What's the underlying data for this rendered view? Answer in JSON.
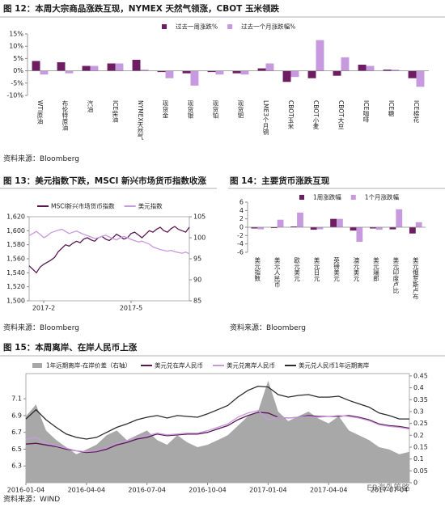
{
  "chart_data": [
    {
      "type": "bar",
      "title": "图 12：本周大宗商品涨跌互现，NYMEX 天然气领涨，CBOT 玉米领跌",
      "source": "资料来源：Bloomberg",
      "categories": [
        "WTI原油",
        "布伦特原油",
        "汽油",
        "ICE柴油",
        "NYMEX天然气",
        "现货金",
        "现货银",
        "现货铂",
        "现货钯",
        "LME3个月铜",
        "CBOT玉米",
        "CBOT小麦",
        "CBOT大豆",
        "ICE咖啡",
        "ICE糖",
        "ICE棉花"
      ],
      "series": [
        {
          "name": "过去一周涨跌%",
          "color": "#6e1d63",
          "values": [
            4,
            3.5,
            2,
            3,
            4.5,
            -0.5,
            -1,
            -0.5,
            -1,
            1,
            -4.5,
            -3,
            -2,
            2.5,
            0.5,
            -3
          ]
        },
        {
          "name": "过去一个月涨跌幅%",
          "color": "#c79ae0",
          "values": [
            -1.5,
            -1,
            2,
            3,
            0.5,
            -3,
            -6,
            -1.5,
            -1.5,
            3,
            -2.5,
            12.5,
            5.5,
            2,
            0.5,
            -6.5
          ]
        }
      ],
      "ylim": [
        -10,
        15
      ],
      "yticks": [
        {
          "value": -10,
          "label": "-10%"
        },
        {
          "value": -5,
          "label": "-5%"
        },
        {
          "value": 0,
          "label": "0%"
        },
        {
          "value": 5,
          "label": "5%"
        },
        {
          "value": 10,
          "label": "10%"
        },
        {
          "value": 15,
          "label": "15%"
        }
      ]
    },
    {
      "type": "line",
      "title": "图 13：美元指数下跌，MSCI 新兴市场货币指数收涨",
      "source": "资料来源：Bloomberg",
      "categories": [
        null,
        null,
        null,
        null,
        "2017-2",
        null,
        null,
        null,
        null,
        null,
        null,
        null,
        null,
        null,
        null,
        null,
        null,
        null,
        null,
        null,
        null,
        null,
        null,
        null,
        null,
        null,
        null,
        null,
        "2017-5",
        null,
        null,
        null,
        null,
        null,
        null,
        null,
        null,
        null,
        null,
        null,
        null,
        null,
        null,
        null,
        null
      ],
      "series": [
        {
          "name": "MSCI新兴市场货币指数",
          "color": "#5a1750",
          "values": [
            1550,
            1545,
            1540,
            1548,
            1552,
            1555,
            1558,
            1562,
            1570,
            1575,
            1580,
            1578,
            1582,
            1585,
            1583,
            1588,
            1590,
            1587,
            1585,
            1590,
            1592,
            1588,
            1586,
            1590,
            1595,
            1592,
            1588,
            1590,
            1596,
            1598,
            1594,
            1590,
            1595,
            1600,
            1598,
            1602,
            1605,
            1600,
            1598,
            1603,
            1606,
            1602,
            1600,
            1598,
            1605
          ]
        },
        {
          "name": "美元指数",
          "color": "#c79ae0",
          "axis": "y2",
          "values": [
            100.5,
            101,
            101.5,
            100.8,
            100,
            100.5,
            101.2,
            101.5,
            101.8,
            102,
            101.5,
            101,
            101.3,
            101.6,
            101.2,
            100.8,
            100.5,
            100.2,
            99.8,
            100,
            100.3,
            100.6,
            100.2,
            99.8,
            99.5,
            100,
            100.3,
            100,
            99.6,
            99.3,
            99,
            99.2,
            98.8,
            98.5,
            97.8,
            97.5,
            97.2,
            97,
            96.8,
            97,
            96.7,
            96.5,
            96.3,
            96.6,
            96.2
          ]
        }
      ],
      "ylim": [
        1500,
        1620
      ],
      "yticks": [
        {
          "value": 1500,
          "label": "1,500"
        },
        {
          "value": 1520,
          "label": "1,520"
        },
        {
          "value": 1540,
          "label": "1,540"
        },
        {
          "value": 1560,
          "label": "1,560"
        },
        {
          "value": 1580,
          "label": "1,580"
        },
        {
          "value": 1600,
          "label": "1,600"
        },
        {
          "value": 1620,
          "label": "1,620"
        }
      ],
      "y2lim": [
        85,
        105
      ],
      "y2ticks": [
        85,
        90,
        95,
        100,
        105
      ]
    },
    {
      "type": "bar",
      "title": "图 14：主要货币涨跌互现",
      "source": "资料来源：Bloomberg",
      "categories": [
        "美元指数",
        "美元人民币",
        "欧元美元",
        "美元日元",
        "英镑美元",
        "澳元美元",
        "美元瑞郎",
        "美元印度卢比",
        "美元俄罗斯卢布"
      ],
      "series": [
        {
          "name": "1周涨跌幅",
          "color": "#6e1d63",
          "values": [
            -0.3,
            -0.2,
            0.2,
            -0.6,
            2,
            -0.8,
            -0.3,
            -0.5,
            -1.5
          ]
        },
        {
          "name": "1个月涨跌幅",
          "color": "#c79ae0",
          "values": [
            -0.5,
            1.8,
            3.5,
            -0.5,
            2,
            -3.5,
            -0.6,
            4.3,
            1.2
          ]
        }
      ],
      "ylim": [
        -6,
        6
      ],
      "yticks": [
        -6,
        -4,
        -2,
        0,
        2,
        4,
        6
      ]
    },
    {
      "type": "line",
      "title": "图 15：本周离岸、在岸人民币上涨",
      "source": "资料来源：WIND",
      "categories": [
        "2016-01-04",
        null,
        null,
        null,
        null,
        null,
        "2016-04-04",
        null,
        null,
        null,
        null,
        null,
        "2016-07-04",
        null,
        null,
        null,
        null,
        null,
        "2016-10-04",
        null,
        null,
        null,
        null,
        null,
        "2017-01-04",
        null,
        null,
        null,
        null,
        null,
        "2017-04-04",
        null,
        null,
        null,
        null,
        null,
        "2017-07-04",
        null,
        null
      ],
      "series": [
        {
          "name": "1年远期离岸-在岸价差（右轴）",
          "color": "#a8a8a8",
          "axis": "y2",
          "fill": true,
          "values": [
            0.28,
            0.33,
            0.22,
            0.18,
            0.15,
            0.12,
            0.14,
            0.16,
            0.2,
            0.22,
            0.18,
            0.2,
            0.22,
            0.18,
            0.16,
            0.2,
            0.17,
            0.15,
            0.16,
            0.18,
            0.2,
            0.24,
            0.28,
            0.3,
            0.43,
            0.3,
            0.26,
            0.28,
            0.3,
            0.27,
            0.25,
            0.28,
            0.22,
            0.2,
            0.18,
            0.15,
            0.14,
            0.12,
            0.13
          ]
        },
        {
          "name": "美元兑在岸人民币",
          "color": "#5a1750",
          "values": [
            6.56,
            6.57,
            6.55,
            6.53,
            6.5,
            6.48,
            6.46,
            6.47,
            6.5,
            6.55,
            6.58,
            6.62,
            6.64,
            6.68,
            6.66,
            6.67,
            6.68,
            6.68,
            6.7,
            6.74,
            6.78,
            6.85,
            6.9,
            6.94,
            6.93,
            6.88,
            6.87,
            6.88,
            6.9,
            6.89,
            6.89,
            6.89,
            6.9,
            6.88,
            6.85,
            6.8,
            6.78,
            6.77,
            6.75
          ]
        },
        {
          "name": "美元兑离岸人民币",
          "color": "#c79ae0",
          "values": [
            6.62,
            6.64,
            6.57,
            6.54,
            6.51,
            6.48,
            6.47,
            6.48,
            6.52,
            6.57,
            6.6,
            6.64,
            6.66,
            6.69,
            6.67,
            6.68,
            6.69,
            6.69,
            6.72,
            6.76,
            6.8,
            6.88,
            6.93,
            6.96,
            6.85,
            6.88,
            6.87,
            6.88,
            6.89,
            6.88,
            6.89,
            6.9,
            6.89,
            6.87,
            6.84,
            6.79,
            6.77,
            6.76,
            6.74
          ]
        },
        {
          "name": "美元兑人民币1年远期离岸",
          "color": "#2b2b2b",
          "values": [
            6.86,
            6.97,
            6.85,
            6.76,
            6.68,
            6.64,
            6.62,
            6.64,
            6.7,
            6.76,
            6.8,
            6.85,
            6.88,
            6.9,
            6.87,
            6.9,
            6.89,
            6.88,
            6.92,
            6.97,
            7.02,
            7.12,
            7.2,
            7.25,
            7.24,
            7.15,
            7.12,
            7.14,
            7.15,
            7.12,
            7.12,
            7.13,
            7.08,
            7.04,
            7.0,
            6.93,
            6.9,
            6.86,
            6.86
          ]
        }
      ],
      "ylim": [
        6.1,
        7.4
      ],
      "yticks": [
        6.3,
        6.5,
        6.7,
        6.9,
        7.1
      ],
      "y2lim": [
        0,
        0.46
      ],
      "y2ticks": [
        0,
        0.05,
        0.1,
        0.15,
        0.2,
        0.25,
        0.3,
        0.35,
        0.4,
        0.45
      ]
    }
  ],
  "watermark": "EB海外策略"
}
